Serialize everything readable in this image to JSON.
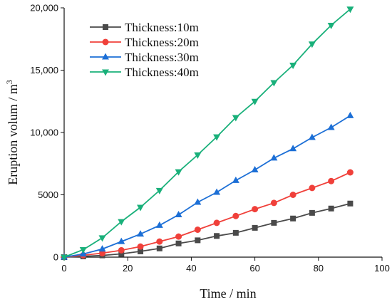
{
  "chart_data": {
    "type": "line",
    "xlabel": "Time / min",
    "ylabel_main": "Eruption volum / m",
    "ylabel_sup": "3",
    "xlim": [
      0,
      100
    ],
    "ylim": [
      0,
      20000
    ],
    "x_ticks": [
      0,
      20,
      40,
      60,
      80,
      100
    ],
    "y_ticks": [
      0,
      5000,
      10000,
      15000,
      20000
    ],
    "x_tick_labels": [
      "0",
      "20",
      "40",
      "60",
      "80",
      "100"
    ],
    "y_tick_labels": [
      "0",
      "5000",
      "10,000",
      "15,000",
      "20,000"
    ],
    "legend_position": "top-left",
    "grid": false,
    "x": [
      0,
      6,
      12,
      18,
      24,
      30,
      36,
      42,
      48,
      54,
      60,
      66,
      72,
      78,
      84,
      90
    ],
    "series": [
      {
        "name": "Thickness:10m",
        "color": "#4a4a4a",
        "marker": "square",
        "values": [
          0,
          60,
          140,
          260,
          460,
          700,
          1100,
          1350,
          1700,
          1950,
          2350,
          2750,
          3100,
          3550,
          3900,
          4300
        ]
      },
      {
        "name": "Thickness:20m",
        "color": "#f0403a",
        "marker": "circle",
        "values": [
          0,
          150,
          320,
          550,
          850,
          1250,
          1650,
          2200,
          2750,
          3300,
          3850,
          4350,
          5000,
          5550,
          6100,
          6800
        ]
      },
      {
        "name": "Thickness:30m",
        "color": "#1c6fd6",
        "marker": "triangle-up",
        "values": [
          0,
          250,
          650,
          1250,
          1850,
          2550,
          3400,
          4400,
          5200,
          6150,
          7000,
          7950,
          8700,
          9600,
          10400,
          11350
        ]
      },
      {
        "name": "Thickness:40m",
        "color": "#19b07a",
        "marker": "triangle-down",
        "values": [
          0,
          600,
          1550,
          2850,
          4000,
          5350,
          6850,
          8200,
          9650,
          11200,
          12500,
          14000,
          15400,
          17100,
          18600,
          19900
        ]
      }
    ]
  }
}
